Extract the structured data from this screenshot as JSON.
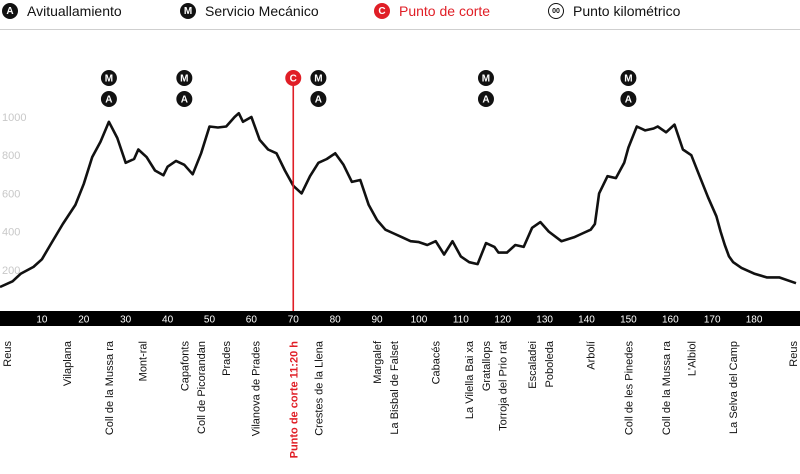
{
  "legend": {
    "items": [
      {
        "symbol": "A",
        "label": "Avituallamiento",
        "style": "dark"
      },
      {
        "symbol": "M",
        "label": "Servicio Mecánico",
        "style": "dark"
      },
      {
        "symbol": "C",
        "label": "Punto de corte",
        "style": "red"
      },
      {
        "symbol": "00",
        "label": "Punto kilométrico",
        "style": "outline"
      }
    ]
  },
  "colors": {
    "line": "#111111",
    "cut": "#e01e26",
    "axis_band": "#000000",
    "grid_label": "#c8c8c8"
  },
  "chart_data": {
    "type": "line",
    "x_unit": "km",
    "xlim": [
      0,
      190
    ],
    "ylim": [
      0,
      1100
    ],
    "y_ticks": [
      200,
      400,
      600,
      800,
      1000
    ],
    "x_ticks": [
      10,
      20,
      30,
      40,
      50,
      60,
      70,
      80,
      90,
      100,
      110,
      120,
      130,
      140,
      150,
      160,
      170,
      180
    ],
    "profile": {
      "x": [
        0,
        3,
        5,
        8,
        10,
        12,
        15,
        18,
        20,
        22,
        24,
        26,
        28,
        30,
        32,
        33,
        35,
        37,
        39,
        40,
        42,
        44,
        46,
        48,
        50,
        52,
        54,
        56,
        57,
        58,
        60,
        62,
        64,
        66,
        68,
        70,
        72,
        74,
        76,
        78,
        80,
        82,
        84,
        86,
        88,
        90,
        92,
        94,
        96,
        98,
        100,
        102,
        104,
        106,
        108,
        110,
        112,
        114,
        116,
        118,
        119,
        121,
        123,
        125,
        127,
        129,
        131,
        134,
        137,
        139,
        141,
        142,
        143,
        145,
        147,
        149,
        150,
        152,
        154,
        156,
        157,
        159,
        161,
        163,
        165,
        167,
        169,
        171,
        172,
        173,
        174,
        175,
        177,
        180,
        183,
        186,
        190
      ],
      "y": [
        110,
        140,
        180,
        215,
        255,
        330,
        440,
        540,
        650,
        790,
        870,
        975,
        890,
        760,
        780,
        830,
        790,
        720,
        695,
        740,
        770,
        750,
        700,
        810,
        950,
        945,
        950,
        1000,
        1020,
        975,
        1000,
        880,
        830,
        810,
        720,
        640,
        600,
        690,
        760,
        780,
        810,
        750,
        660,
        670,
        540,
        460,
        410,
        390,
        370,
        350,
        345,
        330,
        350,
        280,
        350,
        270,
        240,
        230,
        340,
        320,
        290,
        290,
        330,
        320,
        420,
        450,
        400,
        350,
        370,
        390,
        410,
        440,
        600,
        690,
        680,
        760,
        840,
        950,
        930,
        940,
        950,
        920,
        960,
        830,
        800,
        690,
        580,
        480,
        400,
        330,
        270,
        240,
        210,
        180,
        160,
        160,
        130
      ]
    },
    "cut_point": {
      "km": 70,
      "label": "Punto de corte 11:20 h"
    },
    "service_stops": [
      {
        "km": 26,
        "symbols": [
          "M",
          "A"
        ],
        "style": "dark"
      },
      {
        "km": 44,
        "symbols": [
          "M",
          "A"
        ],
        "style": "dark"
      },
      {
        "km": 70,
        "symbols": [
          "C"
        ],
        "style": "red"
      },
      {
        "km": 76,
        "symbols": [
          "M",
          "A"
        ],
        "style": "dark"
      },
      {
        "km": 116,
        "symbols": [
          "M",
          "A"
        ],
        "style": "dark"
      },
      {
        "km": 150,
        "symbols": [
          "M",
          "A"
        ],
        "style": "dark"
      }
    ],
    "places": [
      {
        "km": 0,
        "name": "Reus"
      },
      {
        "km": 16,
        "name": "Vilaplana"
      },
      {
        "km": 26,
        "name": "Coll de la Mussa ra"
      },
      {
        "km": 34,
        "name": "Mont-ral"
      },
      {
        "km": 44,
        "name": "Capafonts"
      },
      {
        "km": 48,
        "name": "Coll de Picorandan"
      },
      {
        "km": 54,
        "name": "Prades"
      },
      {
        "km": 61,
        "name": "Vilanova de Prades"
      },
      {
        "km": 70,
        "name": "Punto de corte 11:20 h",
        "highlight": true
      },
      {
        "km": 76,
        "name": "Crestes de la Llena"
      },
      {
        "km": 90,
        "name": "Margalef"
      },
      {
        "km": 94,
        "name": "La Bisbal de Falset"
      },
      {
        "km": 104,
        "name": "Cabacés"
      },
      {
        "km": 112,
        "name": "La Vilella Bai xa"
      },
      {
        "km": 116,
        "name": "Gratallops"
      },
      {
        "km": 120,
        "name": "Torroja del Prio rat"
      },
      {
        "km": 127,
        "name": "Escaladei"
      },
      {
        "km": 131,
        "name": "Poboleda"
      },
      {
        "km": 141,
        "name": "Arbolí"
      },
      {
        "km": 150,
        "name": "Coll de les Pinedes"
      },
      {
        "km": 159,
        "name": "Coll de la Mussa ra"
      },
      {
        "km": 165,
        "name": "L'Albiol"
      },
      {
        "km": 175,
        "name": "La Selva del Camp"
      },
      {
        "km": 190,
        "name": "Reus"
      }
    ]
  }
}
